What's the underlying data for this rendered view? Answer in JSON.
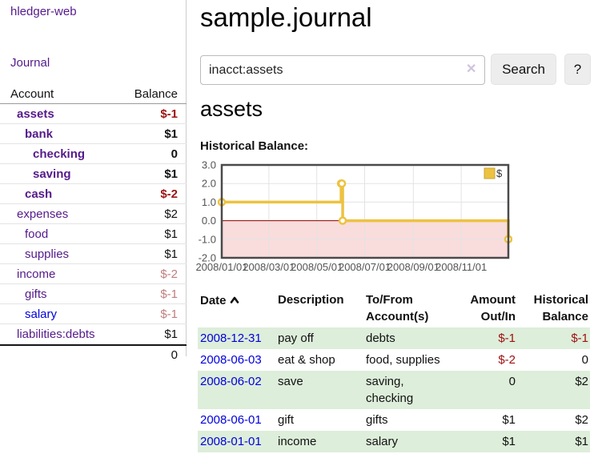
{
  "app": {
    "brand": "hledger-web"
  },
  "sidebar": {
    "journal_link": "Journal",
    "accounts": {
      "header": {
        "account": "Account",
        "balance": "Balance"
      },
      "rows": [
        {
          "name": "assets",
          "balance": "$-1"
        },
        {
          "name": "bank",
          "balance": "$1"
        },
        {
          "name": "checking",
          "balance": "0"
        },
        {
          "name": "saving",
          "balance": "$1"
        },
        {
          "name": "cash",
          "balance": "$-2"
        },
        {
          "name": "expenses",
          "balance": "$2"
        },
        {
          "name": "food",
          "balance": "$1"
        },
        {
          "name": "supplies",
          "balance": "$1"
        },
        {
          "name": "income",
          "balance": "$-2"
        },
        {
          "name": "gifts",
          "balance": "$-1"
        },
        {
          "name": "salary",
          "balance": "$-1"
        },
        {
          "name": "liabilities:debts",
          "balance": "$1"
        }
      ],
      "total": "0"
    }
  },
  "main": {
    "title": "sample.journal",
    "search": {
      "value": "inacct:assets",
      "clear_icon": "✕",
      "button_label": "Search",
      "help_label": "?"
    },
    "account_heading": "assets",
    "chart_label": "Historical Balance:"
  },
  "chart_data": {
    "type": "line",
    "step": true,
    "title": "Historical Balance",
    "series": [
      {
        "name": "$",
        "color": "#edc240",
        "points": [
          [
            "2008-01-01",
            1
          ],
          [
            "2008-06-01",
            2
          ],
          [
            "2008-06-02",
            2
          ],
          [
            "2008-06-03",
            0
          ],
          [
            "2008-12-31",
            -1
          ]
        ]
      }
    ],
    "x_domain": [
      "2008-01-01",
      "2008-12-31"
    ],
    "x_ticks": [
      "2008/01/01",
      "2008/03/01",
      "2008/05/01",
      "2008/07/01",
      "2008/09/01",
      "2008/11/01"
    ],
    "y_ticks": [
      3.0,
      2.0,
      1.0,
      0.0,
      -1.0,
      -2.0
    ],
    "ylim": [
      -2,
      3
    ],
    "grid": true,
    "legend": {
      "label": "$",
      "position": "top-right"
    },
    "negative_region_color": "#f9dcdc",
    "zero_line_color": "#8b0000"
  },
  "register": {
    "headers": {
      "date": "Date",
      "description": "Description",
      "accounts": "To/From Account(s)",
      "amount": "Amount Out/In",
      "balance": "Historical Balance"
    },
    "sort": {
      "column": "date",
      "direction": "ascending"
    },
    "rows": [
      {
        "date": "2008-12-31",
        "description": "pay off",
        "accounts": "debts",
        "amount": "$-1",
        "balance": "$-1"
      },
      {
        "date": "2008-06-03",
        "description": "eat & shop",
        "accounts": "food, supplies",
        "amount": "$-2",
        "balance": "0"
      },
      {
        "date": "2008-06-02",
        "description": "save",
        "accounts": "saving, checking",
        "amount": "0",
        "balance": "$2"
      },
      {
        "date": "2008-06-01",
        "description": "gift",
        "accounts": "gifts",
        "amount": "$1",
        "balance": "$2"
      },
      {
        "date": "2008-01-01",
        "description": "income",
        "accounts": "salary",
        "amount": "$1",
        "balance": "$1"
      }
    ]
  },
  "colors": {
    "link_purple": "#551a8b",
    "link_blue": "#0000dd",
    "negative_strong": "#9c1313",
    "negative_muted": "#c17d7d",
    "row_green": "#ddeeda",
    "chart_line": "#edc240",
    "chart_negative_bg": "#f9dcdc",
    "chart_zero_line": "#8b0000"
  }
}
